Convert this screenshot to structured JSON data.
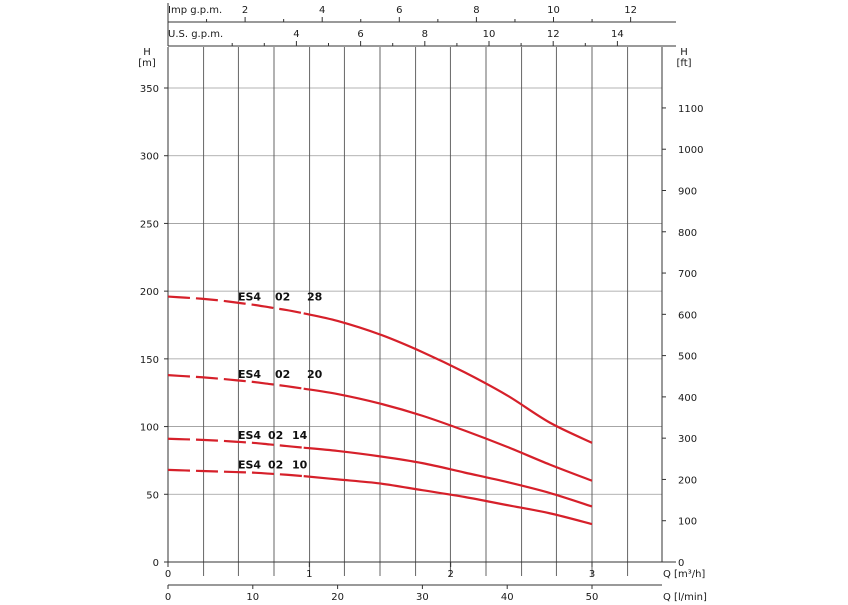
{
  "chart_data": {
    "type": "line",
    "colors": {
      "curve": "#d6202a",
      "axis": "#333333",
      "grid": "#9a9a9a"
    },
    "left_axis": {
      "label_line1": "H",
      "label_line2": "[m]",
      "range": [
        0,
        380
      ],
      "ticks": [
        0,
        50,
        100,
        150,
        200,
        250,
        300,
        350
      ]
    },
    "right_axis": {
      "label_line1": "H",
      "label_line2": "[ft]",
      "ticks": [
        0,
        100,
        200,
        300,
        400,
        500,
        600,
        700,
        800,
        900,
        1000,
        1100
      ]
    },
    "bottom_axis_lmin": {
      "unit_label": "Q [l/min]",
      "range": [
        0,
        58
      ],
      "ticks": [
        0,
        10,
        20,
        30,
        40,
        50
      ]
    },
    "bottom_axis_m3h": {
      "unit_label": "Q [m³/h]",
      "ticks": [
        0,
        1,
        2,
        3
      ]
    },
    "top_axis_imp": {
      "label": "Imp g.p.m.",
      "ticks": [
        2,
        4,
        6,
        8,
        10,
        12
      ]
    },
    "top_axis_us": {
      "label": "U.S. g.p.m.",
      "ticks": [
        4,
        6,
        8,
        10,
        12,
        14
      ]
    },
    "grid_x_lmin": [
      4.2,
      8.3,
      12.5,
      16.7,
      20.8,
      25,
      29.2,
      33.3,
      37.5,
      41.7,
      45.8,
      50,
      54.2
    ],
    "dashed_until_lmin": 16,
    "series": [
      {
        "label": {
          "model": "ES4",
          "stage": "02",
          "size": "28"
        },
        "x": [
          0,
          5,
          10,
          15,
          20,
          25,
          30,
          35,
          40,
          45,
          50
        ],
        "y": [
          196,
          194,
          190,
          185,
          178,
          168,
          155,
          140,
          123,
          103,
          88
        ]
      },
      {
        "label": {
          "model": "ES4",
          "stage": "02",
          "size": "20"
        },
        "x": [
          0,
          5,
          10,
          15,
          20,
          25,
          30,
          35,
          40,
          45,
          50
        ],
        "y": [
          138,
          136,
          133,
          129,
          124,
          117,
          108,
          97,
          85,
          72,
          60
        ]
      },
      {
        "label": {
          "model": "ES4",
          "stage": "02",
          "size": "14"
        },
        "x": [
          0,
          5,
          10,
          15,
          20,
          25,
          30,
          35,
          40,
          45,
          50
        ],
        "y": [
          91,
          90,
          88,
          85,
          82,
          78,
          73,
          66,
          59,
          51,
          41
        ]
      },
      {
        "label": {
          "model": "ES4",
          "stage": "02",
          "size": "10"
        },
        "x": [
          0,
          5,
          10,
          15,
          20,
          25,
          30,
          35,
          40,
          45,
          50
        ],
        "y": [
          68,
          67,
          66,
          64,
          61,
          58,
          53,
          48,
          42,
          36,
          28
        ]
      }
    ]
  }
}
